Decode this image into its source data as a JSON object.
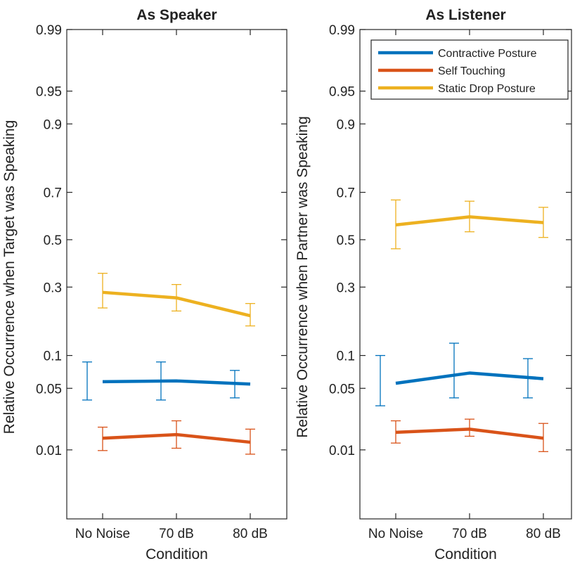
{
  "chart_data": [
    {
      "type": "line",
      "title": "As Speaker",
      "xlabel": "Condition",
      "ylabel": "Relative Occurrence when Target was Speaking",
      "categories": [
        "No Noise",
        "70 dB",
        "80 dB"
      ],
      "yscale": "probit",
      "yticks": [
        0.01,
        0.05,
        0.1,
        0.3,
        0.5,
        0.7,
        0.9,
        0.95,
        0.99
      ],
      "ytick_labels": [
        "0.01",
        "0.05",
        "0.1",
        "0.3",
        "0.5",
        "0.7",
        "0.9",
        "0.95",
        "0.99"
      ],
      "ylim": [
        0.001,
        0.99
      ],
      "grid": false,
      "series": [
        {
          "name": "Contractive Posture",
          "color": "#0072BD",
          "values": [
            0.058,
            0.059,
            0.055
          ],
          "lower": [
            0.038,
            0.038,
            0.04
          ],
          "upper": [
            0.088,
            0.088,
            0.074
          ]
        },
        {
          "name": "Self Touching",
          "color": "#D95319",
          "values": [
            0.014,
            0.0155,
            0.0125
          ],
          "lower": [
            0.0098,
            0.0105,
            0.0088
          ],
          "upper": [
            0.019,
            0.0225,
            0.018
          ]
        },
        {
          "name": "Static Drop Posture",
          "color": "#EDB120",
          "values": [
            0.28,
            0.26,
            0.2
          ],
          "lower": [
            0.225,
            0.215,
            0.17
          ],
          "upper": [
            0.355,
            0.31,
            0.24
          ]
        }
      ]
    },
    {
      "type": "line",
      "title": "As Listener",
      "xlabel": "Condition",
      "ylabel": "Relative Occurrence when Partner was Speaking",
      "categories": [
        "No Noise",
        "70 dB",
        "80 dB"
      ],
      "yscale": "probit",
      "yticks": [
        0.01,
        0.05,
        0.1,
        0.3,
        0.5,
        0.7,
        0.9,
        0.95,
        0.99
      ],
      "ytick_labels": [
        "0.01",
        "0.05",
        "0.1",
        "0.3",
        "0.5",
        "0.7",
        "0.9",
        "0.95",
        "0.99"
      ],
      "ylim": [
        0.001,
        0.99
      ],
      "grid": false,
      "legend": "top-right",
      "series": [
        {
          "name": "Contractive Posture",
          "color": "#0072BD",
          "values": [
            0.056,
            0.07,
            0.062
          ],
          "lower": [
            0.033,
            0.04,
            0.04
          ],
          "upper": [
            0.1,
            0.126,
            0.094
          ]
        },
        {
          "name": "Self Touching",
          "color": "#D95319",
          "values": [
            0.0165,
            0.018,
            0.014
          ],
          "lower": [
            0.0122,
            0.0148,
            0.0095
          ],
          "upper": [
            0.0225,
            0.0235,
            0.021
          ]
        },
        {
          "name": "Static Drop Posture",
          "color": "#EDB120",
          "values": [
            0.565,
            0.6,
            0.575
          ],
          "lower": [
            0.46,
            0.535,
            0.51
          ],
          "upper": [
            0.67,
            0.665,
            0.64
          ]
        }
      ]
    }
  ]
}
